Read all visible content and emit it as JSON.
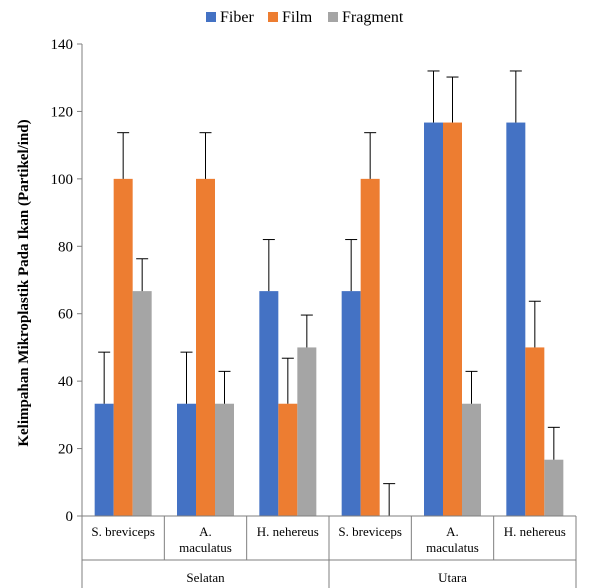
{
  "chart_data": {
    "type": "bar",
    "title": "",
    "xlabel": "",
    "ylabel": "Kelimpahan Mikroplastik Pada Ikan (Partikel/ind)",
    "ylim": [
      0,
      140
    ],
    "yticks": [
      0,
      20,
      40,
      60,
      80,
      100,
      120,
      140
    ],
    "grid": false,
    "legend_position": "top",
    "categories": [
      {
        "label": [
          "S. breviceps"
        ],
        "group": "Selatan"
      },
      {
        "label": [
          "A.",
          "maculatus"
        ],
        "group": "Selatan"
      },
      {
        "label": [
          "H. nehereus"
        ],
        "group": "Selatan"
      },
      {
        "label": [
          "S. breviceps"
        ],
        "group": "Utara"
      },
      {
        "label": [
          "A.",
          "maculatus"
        ],
        "group": "Utara"
      },
      {
        "label": [
          "H. nehereus"
        ],
        "group": "Utara"
      }
    ],
    "groups": [
      "Selatan",
      "Utara"
    ],
    "series": [
      {
        "name": "Fiber",
        "color": "#4472C4",
        "values": [
          33.3,
          33.3,
          66.7,
          66.7,
          116.7,
          116.7
        ],
        "errors": [
          15.3,
          15.3,
          15.3,
          15.3,
          15.3,
          15.3
        ]
      },
      {
        "name": "Film",
        "color": "#ED7D31",
        "values": [
          100,
          100,
          33.3,
          100,
          116.7,
          50
        ],
        "errors": [
          13.7,
          13.7,
          13.5,
          13.7,
          13.5,
          13.7
        ]
      },
      {
        "name": "Fragment",
        "color": "#A5A5A5",
        "values": [
          66.7,
          33.3,
          50,
          0,
          33.3,
          16.7
        ],
        "errors": [
          9.6,
          9.6,
          9.6,
          9.6,
          9.6,
          9.6
        ]
      }
    ]
  }
}
